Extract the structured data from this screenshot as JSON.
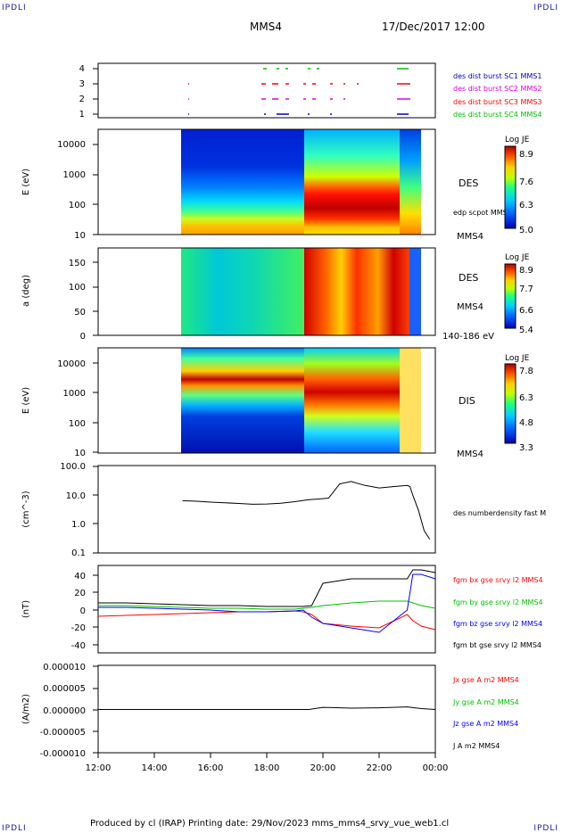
{
  "header": {
    "corner_left_top": "IPDLI",
    "corner_right_top": "IPDLI",
    "corner_left_bottom": "IPDLI",
    "corner_right_bottom": "IPDLI",
    "spacecraft": "MMS4",
    "date": "17/Dec/2017 12:00"
  },
  "footer": {
    "text": "Produced by cl (IRAP)   Printing date: 29/Nov/2023   mms_mms4_srvy_vue_web1.cl"
  },
  "time_axis": {
    "ticks": [
      "12:00",
      "14:00",
      "16:00",
      "18:00",
      "20:00",
      "22:00",
      "00:00"
    ]
  },
  "colors": {
    "black": "#000000",
    "red": "#ff0000",
    "green": "#00c000",
    "blue": "#0000ff",
    "magenta": "#e000e0",
    "dark_blue": "#0000c0"
  },
  "panels": {
    "burst": {
      "yticks": [
        "4",
        "3",
        "2",
        "1"
      ],
      "legend": [
        {
          "text": "des dist burst SC1 MMS1",
          "color": "#0000c0"
        },
        {
          "text": "des dist burst SC2 MMS2",
          "color": "#e000e0"
        },
        {
          "text": "des dist burst SC3 MMS3",
          "color": "#ff0000"
        },
        {
          "text": "des dist burst SC4 MMS4",
          "color": "#00c000"
        }
      ]
    },
    "des_energy": {
      "ylabel": "E (eV)",
      "yticks": [
        "10000",
        "1000",
        "100",
        "10"
      ],
      "label": "DES",
      "sub_label": "edp scpot MMS4",
      "bottom_label": "MMS4",
      "colorbar": {
        "title": "Log JE",
        "ticks": [
          "8.9",
          "7.6",
          "6.3",
          "5.0"
        ]
      }
    },
    "des_pitch": {
      "ylabel": "a (deg)",
      "yticks": [
        "150",
        "100",
        "50",
        "0"
      ],
      "label": "DES",
      "label2": "MMS4",
      "bottom_label": "140-186 eV",
      "colorbar": {
        "title": "Log JE",
        "ticks": [
          "8.9",
          "7.7",
          "6.6",
          "5.4"
        ]
      }
    },
    "dis_energy": {
      "ylabel": "E (eV)",
      "yticks": [
        "10000",
        "1000",
        "100",
        "10"
      ],
      "label": "DIS",
      "bottom_label": "MMS4",
      "colorbar": {
        "title": "Log JE",
        "ticks": [
          "7.8",
          "6.3",
          "4.8",
          "3.3"
        ]
      }
    },
    "density": {
      "ylabel": "(cm^-3)",
      "yticks": [
        "100.0",
        "10.0",
        "1.0",
        "0.1"
      ],
      "legend": "des numberdensity fast M"
    },
    "bfield": {
      "ylabel": "(nT)",
      "yticks": [
        "40",
        "20",
        "0",
        "-20",
        "-40"
      ],
      "legend": [
        {
          "text": "fgm bx gse srvy l2 MMS4",
          "color": "#ff0000"
        },
        {
          "text": "fgm by gse srvy l2 MMS4",
          "color": "#00c000"
        },
        {
          "text": "fgm bz gse srvy l2 MMS4",
          "color": "#0000ff"
        },
        {
          "text": "fgm bt gse srvy l2 MMS4",
          "color": "#000000"
        }
      ]
    },
    "current": {
      "ylabel": "(A/m2)",
      "yticks": [
        "0.000010",
        "0.000005",
        "0.000000",
        "-0.000005",
        "-0.000010"
      ],
      "legend": [
        {
          "text": "Jx gse A m2 MMS4",
          "color": "#ff0000"
        },
        {
          "text": "Jy gse A m2 MMS4",
          "color": "#00c000"
        },
        {
          "text": "Jz gse A m2 MMS4",
          "color": "#0000ff"
        },
        {
          "text": "J A m2 MMS4",
          "color": "#000000"
        }
      ]
    }
  },
  "chart_data": [
    {
      "type": "line",
      "panel": "density",
      "x_unit": "UT hours since 17/Dec/2017 12:00",
      "xlim": [
        0,
        12
      ],
      "ylim": [
        0.1,
        100
      ],
      "log_y": true,
      "x": [
        3.0,
        3.5,
        4.0,
        4.5,
        5.0,
        5.5,
        6.0,
        6.5,
        7.0,
        7.5,
        7.9,
        8.2,
        8.6,
        9.0,
        9.5,
        10.0,
        10.5,
        11.0,
        11.1,
        11.2,
        11.4,
        11.6,
        11.8
      ],
      "series": [
        {
          "values": [
            6.5,
            6.2,
            5.8,
            5.5,
            5.2,
            4.9,
            5.0,
            5.3,
            6.0,
            7.0,
            7.5,
            8.0,
            25,
            30,
            22,
            18,
            20,
            22,
            20,
            10,
            3,
            0.6,
            0.3
          ]
        }
      ]
    },
    {
      "type": "line",
      "panel": "bfield",
      "x_unit": "UT hours since 17/Dec/2017 12:00",
      "xlim": [
        0,
        12
      ],
      "ylim": [
        -48,
        50
      ],
      "x": [
        0,
        1,
        2,
        3,
        4,
        5,
        6,
        7,
        7.3,
        7.6,
        8,
        9,
        10,
        11,
        11.2,
        11.5,
        12
      ],
      "series": [
        {
          "name": "fgm bx gse srvy l2 MMS4",
          "values": [
            -7,
            -6,
            -5,
            -4,
            -3,
            -2,
            -2,
            -1,
            -2,
            -5,
            -15,
            -18,
            -20,
            -5,
            -12,
            -18,
            -22
          ]
        },
        {
          "name": "fgm by gse srvy l2 MMS4",
          "values": [
            5,
            5,
            4,
            3,
            2,
            2,
            1,
            1,
            2,
            3,
            5,
            8,
            10,
            10,
            8,
            5,
            2
          ]
        },
        {
          "name": "fgm bz gse srvy l2 MMS4",
          "values": [
            3,
            3,
            2,
            1,
            0,
            -2,
            -2,
            -1,
            0,
            -8,
            -15,
            -20,
            -25,
            0,
            40,
            40,
            35
          ]
        },
        {
          "name": "fgm bt gse srvy l2 MMS4",
          "values": [
            8,
            8,
            7,
            6,
            5,
            5,
            4,
            4,
            4,
            5,
            30,
            35,
            35,
            35,
            45,
            45,
            42
          ]
        }
      ]
    },
    {
      "type": "line",
      "panel": "current",
      "x_unit": "UT hours since 17/Dec/2017 12:00",
      "xlim": [
        0,
        12
      ],
      "ylim": [
        -1e-05,
        1e-05
      ],
      "x": [
        0,
        2,
        4,
        6,
        7.5,
        8,
        9,
        10,
        11,
        11.5,
        12
      ],
      "series": [
        {
          "name": "J A m2 MMS4",
          "values": [
            0,
            0,
            0,
            0,
            0,
            5e-07,
            3e-07,
            4e-07,
            6e-07,
            2e-07,
            0
          ]
        }
      ]
    }
  ]
}
